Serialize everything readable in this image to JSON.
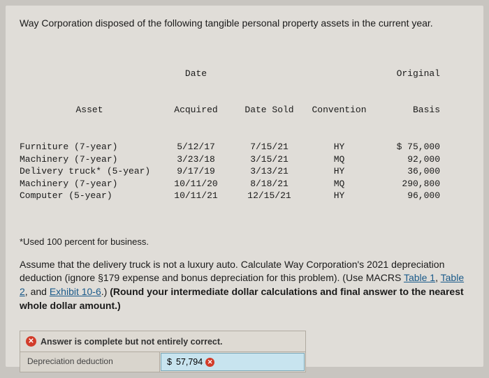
{
  "intro": "Way Corporation disposed of the following tangible personal property assets in the current year.",
  "table": {
    "headers": {
      "asset": "Asset",
      "acquired": "Date\nAcquired",
      "sold": "Date Sold",
      "convention": "Convention",
      "basis": "Original\nBasis"
    },
    "rows": [
      {
        "asset": "Furniture (7-year)",
        "acquired": "5/12/17",
        "sold": "7/15/21",
        "convention": "HY",
        "basis": "$ 75,000"
      },
      {
        "asset": "Machinery (7-year)",
        "acquired": "3/23/18",
        "sold": "3/15/21",
        "convention": "MQ",
        "basis": "92,000"
      },
      {
        "asset": "Delivery truck* (5-year)",
        "acquired": "9/17/19",
        "sold": "3/13/21",
        "convention": "HY",
        "basis": "36,000"
      },
      {
        "asset": "Machinery (7-year)",
        "acquired": "10/11/20",
        "sold": "8/18/21",
        "convention": "MQ",
        "basis": "290,800"
      },
      {
        "asset": "Computer (5-year)",
        "acquired": "10/11/21",
        "sold": "12/15/21",
        "convention": "HY",
        "basis": "96,000"
      }
    ]
  },
  "footnote": "*Used 100 percent for business.",
  "instructions": {
    "pre": "Assume that the delivery truck is not a luxury auto. Calculate Way Corporation's 2021 depreciation deduction (ignore §179 expense and bonus depreciation for this problem). (Use MACRS ",
    "link1": "Table 1",
    "sep1": ", ",
    "link2": "Table 2",
    "sep2": ", and ",
    "link3": "Exhibit 10-6",
    "post1": ".) ",
    "bold": "(Round your intermediate dollar calculations and final answer to the nearest whole dollar amount.)"
  },
  "answer": {
    "header": "Answer is complete but not entirely correct.",
    "label": "Depreciation deduction",
    "currency": "$",
    "value": "57,794"
  }
}
